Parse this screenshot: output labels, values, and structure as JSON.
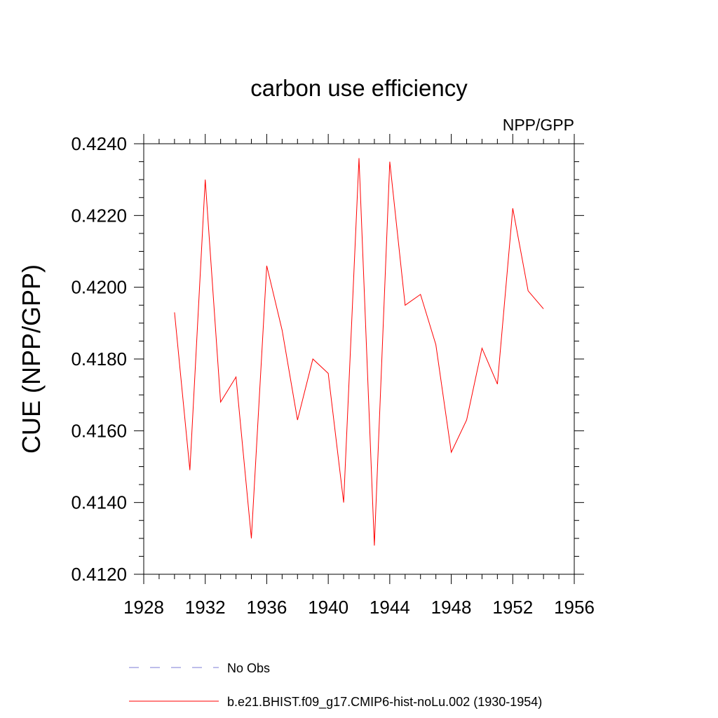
{
  "chart_data": {
    "type": "line",
    "title": "carbon use efficiency",
    "subtitle": "NPP/GPP",
    "xlabel": "",
    "ylabel": "CUE  (NPP/GPP)",
    "xlim": [
      1928,
      1956
    ],
    "ylim": [
      0.412,
      0.424
    ],
    "x_ticks": [
      "1928",
      "1932",
      "1936",
      "1940",
      "1944",
      "1948",
      "1952",
      "1956"
    ],
    "y_ticks": [
      "0.4120",
      "0.4140",
      "0.4160",
      "0.4180",
      "0.4200",
      "0.4220",
      "0.4240"
    ],
    "grid": false,
    "legend_position": "bottom",
    "series": [
      {
        "name": "b.e21.BHIST.f09_g17.CMIP6-hist-noLu.002 (1930-1954)",
        "color": "#ff0000",
        "style": "solid",
        "x": [
          1930,
          1931,
          1932,
          1933,
          1934,
          1935,
          1936,
          1937,
          1938,
          1939,
          1940,
          1941,
          1942,
          1943,
          1944,
          1945,
          1946,
          1947,
          1948,
          1949,
          1950,
          1951,
          1952,
          1953,
          1954
        ],
        "y": [
          0.4193,
          0.4149,
          0.423,
          0.4168,
          0.4175,
          0.413,
          0.4206,
          0.4188,
          0.4163,
          0.418,
          0.4176,
          0.414,
          0.4236,
          0.4128,
          0.4235,
          0.4195,
          0.4198,
          0.4184,
          0.4154,
          0.4163,
          0.4183,
          0.4173,
          0.4222,
          0.4199,
          0.4194
        ]
      }
    ],
    "legend": [
      {
        "label": "No Obs",
        "color": "#7b7bd6",
        "style": "dashed"
      },
      {
        "label": "b.e21.BHIST.f09_g17.CMIP6-hist-noLu.002 (1930-1954)",
        "color": "#ff0000",
        "style": "solid"
      }
    ]
  }
}
